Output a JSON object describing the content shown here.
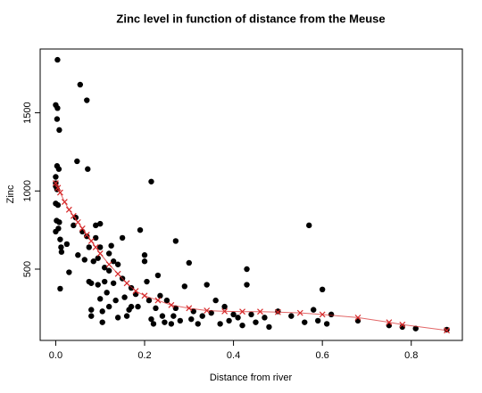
{
  "chart_data": {
    "type": "scatter",
    "title": "Zinc level in function of distance from the Meuse",
    "x_label": "Distance from river",
    "y_label": "Zinc",
    "xlim": [
      -0.035,
      0.915
    ],
    "ylim": [
      44,
      1908
    ],
    "xticks": [
      {
        "value": 0,
        "label": "0.0"
      },
      0.2,
      0.4,
      0.6,
      0.8
    ],
    "yticks": [
      500,
      1000,
      1500
    ],
    "series": [
      {
        "type": "scatter",
        "color": "#000000",
        "x": [
          0.004,
          0.0,
          0.004,
          0.003,
          0.008,
          0.003,
          0.007,
          0.0,
          0.0,
          0.0,
          0.003,
          0.0,
          0.005,
          0.002,
          0.008,
          0.0,
          0.006,
          0.01,
          0.012,
          0.013,
          0.01,
          0.025,
          0.03,
          0.04,
          0.045,
          0.05,
          0.055,
          0.048,
          0.07,
          0.072,
          0.06,
          0.065,
          0.07,
          0.075,
          0.075,
          0.08,
          0.08,
          0.08,
          0.085,
          0.09,
          0.09,
          0.095,
          0.095,
          0.1,
          0.1,
          0.1,
          0.105,
          0.105,
          0.11,
          0.11,
          0.115,
          0.12,
          0.12,
          0.12,
          0.125,
          0.13,
          0.13,
          0.135,
          0.14,
          0.14,
          0.15,
          0.15,
          0.155,
          0.16,
          0.165,
          0.17,
          0.17,
          0.18,
          0.185,
          0.19,
          0.2,
          0.2,
          0.205,
          0.21,
          0.215,
          0.215,
          0.22,
          0.225,
          0.23,
          0.235,
          0.24,
          0.245,
          0.25,
          0.26,
          0.265,
          0.27,
          0.27,
          0.28,
          0.29,
          0.3,
          0.305,
          0.31,
          0.32,
          0.33,
          0.34,
          0.35,
          0.36,
          0.37,
          0.38,
          0.39,
          0.4,
          0.41,
          0.42,
          0.43,
          0.43,
          0.44,
          0.45,
          0.47,
          0.48,
          0.5,
          0.53,
          0.56,
          0.57,
          0.58,
          0.59,
          0.6,
          0.61,
          0.62,
          0.68,
          0.75,
          0.78,
          0.81,
          0.88
        ],
        "values": [
          1839,
          1550,
          1530,
          1460,
          1390,
          1160,
          1140,
          1090,
          1050,
          1030,
          1010,
          920,
          910,
          810,
          800,
          740,
          760,
          690,
          640,
          610,
          375,
          660,
          480,
          780,
          830,
          590,
          1680,
          1190,
          1580,
          1140,
          740,
          560,
          710,
          420,
          640,
          410,
          240,
          200,
          550,
          780,
          700,
          570,
          400,
          790,
          640,
          310,
          160,
          230,
          510,
          420,
          350,
          600,
          490,
          260,
          650,
          550,
          410,
          300,
          190,
          530,
          700,
          440,
          320,
          200,
          240,
          380,
          260,
          340,
          260,
          750,
          590,
          550,
          420,
          300,
          1060,
          180,
          150,
          250,
          460,
          330,
          200,
          160,
          300,
          150,
          200,
          680,
          250,
          170,
          390,
          540,
          180,
          230,
          150,
          200,
          400,
          220,
          300,
          150,
          260,
          170,
          210,
          190,
          140,
          500,
          400,
          210,
          160,
          190,
          130,
          230,
          200,
          160,
          780,
          240,
          170,
          370,
          150,
          210,
          170,
          140,
          130,
          120,
          113
        ]
      },
      {
        "type": "line",
        "color": "#d62728",
        "marker": "x",
        "x": [
          0,
          0.005,
          0.01,
          0.02,
          0.03,
          0.04,
          0.05,
          0.06,
          0.07,
          0.08,
          0.09,
          0.1,
          0.12,
          0.14,
          0.16,
          0.18,
          0.2,
          0.23,
          0.26,
          0.3,
          0.34,
          0.38,
          0.42,
          0.46,
          0.5,
          0.55,
          0.6,
          0.68,
          0.75,
          0.78,
          0.88
        ],
        "values": [
          1050,
          1020,
          990,
          930,
          880,
          840,
          800,
          760,
          720,
          680,
          640,
          600,
          530,
          470,
          410,
          360,
          330,
          300,
          270,
          250,
          235,
          230,
          228,
          228,
          225,
          220,
          210,
          190,
          160,
          145,
          108
        ]
      }
    ]
  }
}
